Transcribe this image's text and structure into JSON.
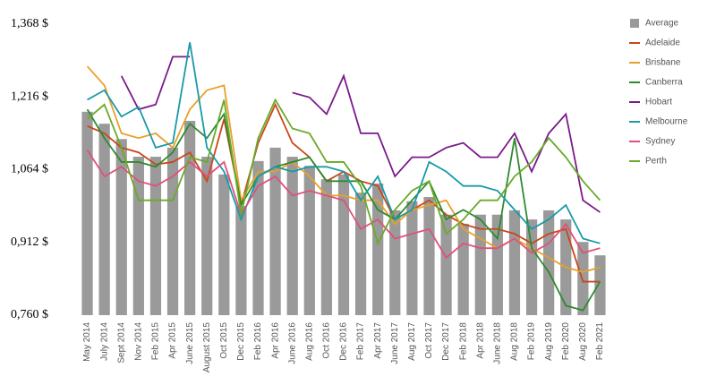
{
  "chart_data": {
    "type": "bar-line",
    "categories": [
      "May 2014",
      "July 2014",
      "Sept 2014",
      "Nov 2014",
      "Feb 2015",
      "Apr 2015",
      "June 2015",
      "August 2015",
      "Oct 2015",
      "Dec 2015",
      "Feb 2016",
      "Apr 2016",
      "June 2016",
      "Aug 2016",
      "Oct 2016",
      "Dec 2016",
      "Feb 2017",
      "Apr 2017",
      "June 2017",
      "Aug 2017",
      "Oct 2017",
      "Dec 2017",
      "Feb 2018",
      "Apr 2018",
      "June 2018",
      "Aug 2018",
      "Feb 2019",
      "Aug 2019",
      "Feb 2020",
      "Aug 2020",
      "Feb 2021"
    ],
    "series": [
      {
        "name": "Average",
        "color": "#9a9a9a",
        "kind": "bar",
        "values": [
          1185,
          1160,
          1128,
          1091,
          1091,
          1110,
          1166,
          1091,
          1054,
          988,
          1082,
          1110,
          1091,
          1072,
          1044,
          1054,
          1016,
          1035,
          979,
          998,
          1007,
          970,
          951,
          970,
          970,
          979,
          960,
          979,
          960,
          913,
          885
        ]
      },
      {
        "name": "Adelaide",
        "color": "#c8481c",
        "kind": "line",
        "values": [
          1155,
          1140,
          1110,
          1100,
          1075,
          1080,
          1100,
          1040,
          1170,
          990,
          1120,
          1200,
          1120,
          1090,
          1040,
          1060,
          1040,
          1030,
          960,
          980,
          1000,
          970,
          950,
          940,
          940,
          930,
          910,
          930,
          940,
          830,
          830
        ]
      },
      {
        "name": "Brisbane",
        "color": "#e8a02a",
        "kind": "line",
        "values": [
          1280,
          1240,
          1140,
          1130,
          1140,
          1110,
          1190,
          1230,
          1240,
          1000,
          1060,
          1060,
          1080,
          1050,
          1010,
          1010,
          1000,
          1000,
          950,
          980,
          990,
          1000,
          940,
          920,
          900,
          920,
          900,
          880,
          860,
          850,
          860
        ]
      },
      {
        "name": "Canberra",
        "color": "#2e8b2e",
        "kind": "line",
        "values": [
          1190,
          1130,
          1080,
          1080,
          1070,
          1100,
          1160,
          1130,
          1180,
          990,
          1050,
          1070,
          1080,
          1090,
          1040,
          1040,
          1040,
          980,
          960,
          1000,
          1040,
          960,
          980,
          960,
          920,
          1130,
          900,
          850,
          780,
          770,
          830
        ]
      },
      {
        "name": "Hobart",
        "color": "#7a1a8a",
        "kind": "line",
        "values": [
          null,
          null,
          1260,
          1190,
          1200,
          1300,
          1300,
          null,
          null,
          null,
          null,
          null,
          1225,
          1215,
          1180,
          1260,
          1140,
          1140,
          1050,
          1090,
          1090,
          1110,
          1120,
          1090,
          1090,
          1140,
          1060,
          1140,
          1180,
          1000,
          975
        ]
      },
      {
        "name": "Melbourne",
        "color": "#1a9aa8",
        "kind": "line",
        "values": [
          1210,
          1230,
          1175,
          1195,
          1110,
          1120,
          1330,
          1110,
          1060,
          960,
          1050,
          1070,
          1060,
          1070,
          1070,
          1060,
          1000,
          1050,
          960,
          980,
          1080,
          1060,
          1030,
          1030,
          1020,
          980,
          940,
          960,
          990,
          920,
          910
        ]
      },
      {
        "name": "Sydney",
        "color": "#e0507a",
        "kind": "line",
        "values": [
          1105,
          1050,
          1070,
          1040,
          1030,
          1050,
          1080,
          1050,
          1080,
          970,
          1030,
          1050,
          1010,
          1020,
          1010,
          1000,
          940,
          960,
          920,
          930,
          940,
          880,
          910,
          900,
          900,
          920,
          890,
          910,
          950,
          890,
          900
        ]
      },
      {
        "name": "Perth",
        "color": "#6aaa2a",
        "kind": "line",
        "values": [
          1170,
          1200,
          1110,
          1000,
          1000,
          1000,
          1090,
          1080,
          1210,
          970,
          1130,
          1210,
          1150,
          1140,
          1080,
          1080,
          1030,
          910,
          980,
          1020,
          1040,
          930,
          960,
          1000,
          1000,
          1050,
          1080,
          1130,
          1090,
          1040,
          1000
        ]
      }
    ],
    "ylim": [
      760,
      1368
    ],
    "yticks": [
      {
        "value": 1368,
        "label": "1,368 $"
      },
      {
        "value": 1216,
        "label": "1,216 $"
      },
      {
        "value": 1064,
        "label": "1,064 $"
      },
      {
        "value": 912,
        "label": "0,912 $"
      },
      {
        "value": 760,
        "label": "0,760 $"
      }
    ],
    "legend": "right"
  }
}
